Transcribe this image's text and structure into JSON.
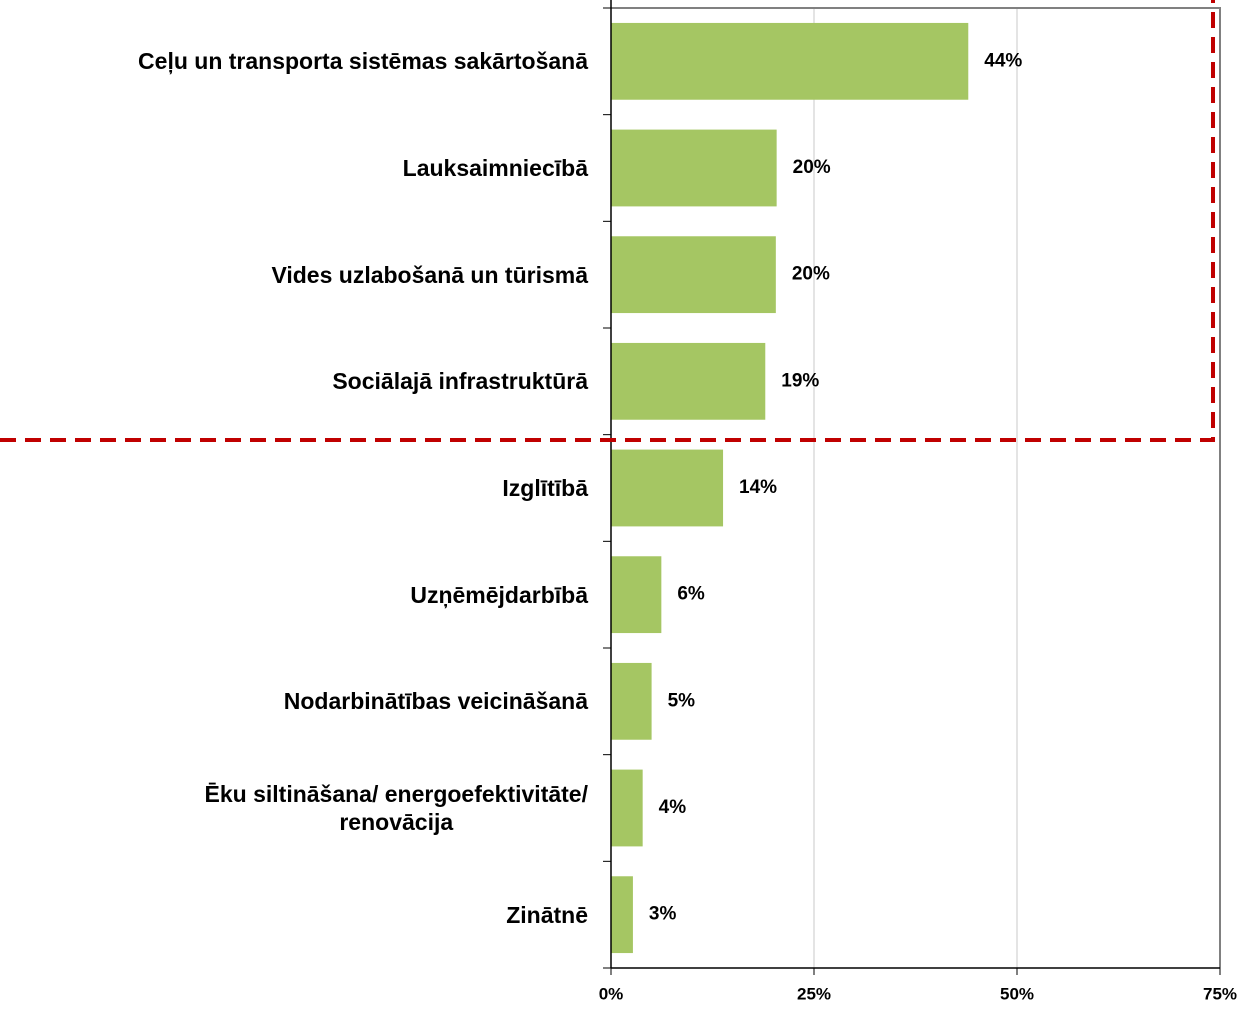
{
  "chart_data": {
    "type": "bar",
    "orientation": "horizontal",
    "categories": [
      "Ceļu un transporta sistēmas sakārtošanā",
      "Lauksaimniecībā",
      "Vides uzlabošanā un tūrismā",
      "Sociālajā infrastruktūrā",
      "Izglītībā",
      "Uzņēmējdarbībā",
      "Nodarbinātības veicināšanā",
      "Ēku siltināšana/ energoefektivitāte/\nrenovācija",
      "Zinātnē"
    ],
    "values": [
      44,
      20.4,
      20.3,
      19,
      13.8,
      6.2,
      5,
      3.9,
      2.7
    ],
    "value_labels": [
      "44%",
      "20%",
      "20%",
      "19%",
      "14%",
      "6%",
      "5%",
      "4%",
      "3%"
    ],
    "color": "#a5c663",
    "xlim": [
      0,
      75
    ],
    "xticks": [
      {
        "value": 0,
        "label": "0%"
      },
      {
        "value": 25,
        "label": "25%"
      },
      {
        "value": 50,
        "label": "50%"
      },
      {
        "value": 75,
        "label": "75%"
      }
    ],
    "grid": true
  }
}
